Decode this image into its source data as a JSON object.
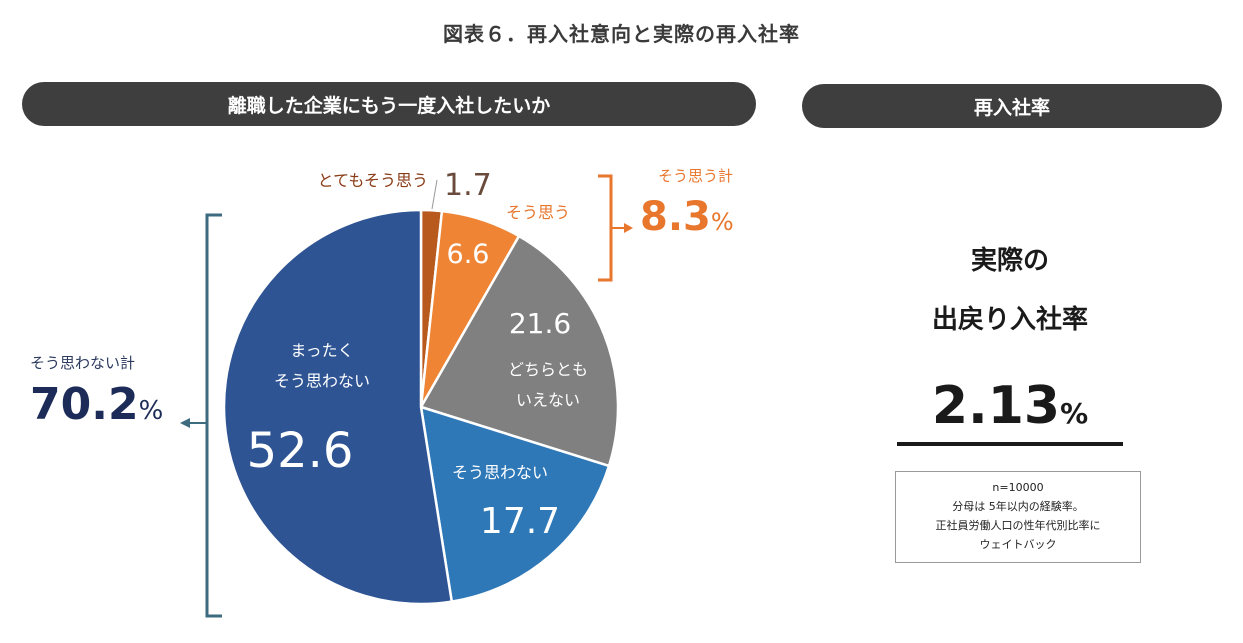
{
  "figure_title": "図表６．再入社意向と実際の再入社率",
  "left_panel": {
    "header": "離職した企業にもう一度入社したいか"
  },
  "right_panel": {
    "header": "再入社率",
    "label_line1": "実際の",
    "label_line2": "出戻り入社率",
    "rate_value": "2.13",
    "rate_unit": "%",
    "note_lines": [
      "n=10000",
      "分母は 5年以内の経験率。",
      "正社員労働人口の性年代別比率に",
      "ウェイトバック"
    ]
  },
  "summary_disagree": {
    "label": "そう思わない計",
    "value": "70.2",
    "unit": "%"
  },
  "summary_agree": {
    "label": "そう思う計",
    "value": "8.3",
    "unit": "%"
  },
  "chart_data": {
    "type": "pie",
    "title": "離職した企業にもう一度入社したいか",
    "slices": [
      {
        "label": "とてもそう思う",
        "value": 1.7,
        "value_label": "1.7",
        "color": "#b85a1e"
      },
      {
        "label": "そう思う",
        "value": 6.6,
        "value_label": "6.6",
        "color": "#ee8434"
      },
      {
        "label": "どちらとも\nいえない",
        "value": 21.6,
        "value_label": "21.6",
        "color": "#808080"
      },
      {
        "label": "そう思わない",
        "value": 17.7,
        "value_label": "17.7",
        "color": "#2f78b8"
      },
      {
        "label": "まったく\nそう思わない",
        "value": 52.6,
        "value_label": "52.6",
        "color": "#2e5494"
      }
    ],
    "group_totals": [
      {
        "label": "そう思う計",
        "value": 8.3
      },
      {
        "label": "そう思わない計",
        "value": 70.2
      }
    ]
  }
}
